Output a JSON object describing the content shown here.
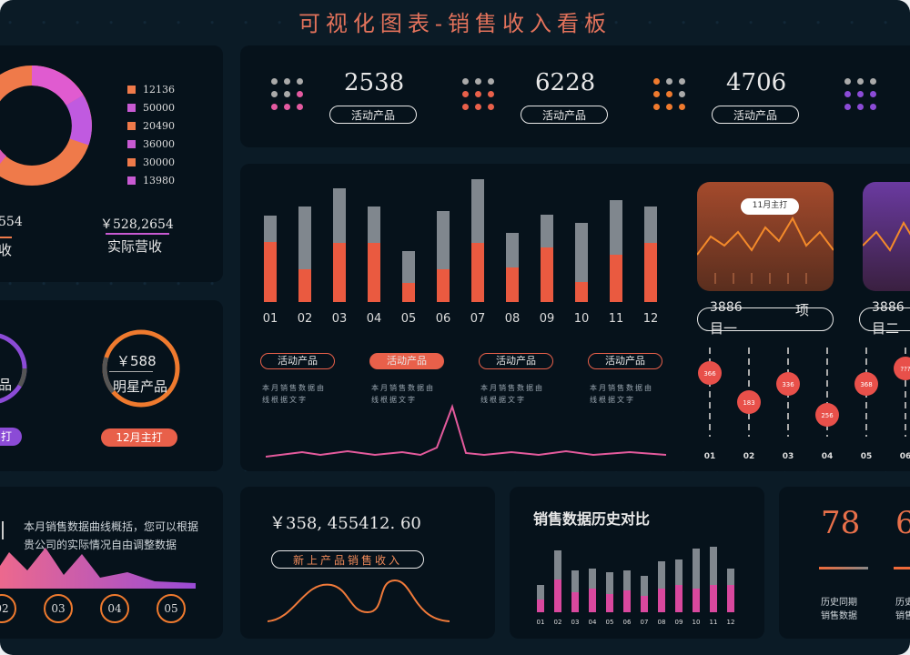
{
  "title": "可视化图表-销售收入看板",
  "donut": {
    "legend": [
      "12136",
      "50000",
      "20490",
      "36000",
      "30000",
      "13980"
    ],
    "colors": [
      "#ef7a4a",
      "#c85ad2",
      "#ef7a4a",
      "#c85ad2",
      "#ef7a4a",
      "#c85ad2"
    ],
    "left_value": "554",
    "left_label": "收",
    "right_value": "￥528,2654",
    "right_label": "实际营收"
  },
  "stats": [
    {
      "value": "2538",
      "label": "活动产品"
    },
    {
      "value": "6228",
      "label": "活动产品"
    },
    {
      "value": "4706",
      "label": "活动产品"
    }
  ],
  "rings": {
    "left_text": "品",
    "left_badge": "打",
    "right_value": "￥588",
    "right_label": "明星产品",
    "right_badge": "12月主打"
  },
  "main_chart": {
    "type": "bar",
    "categories": [
      "01",
      "02",
      "03",
      "04",
      "05",
      "06",
      "07",
      "08",
      "09",
      "10",
      "11",
      "12"
    ],
    "tabs": [
      "活动产品",
      "活动产品",
      "活动产品",
      "活动产品"
    ],
    "tab_note": "本月销售数据由线根据文字"
  },
  "mini_cards": {
    "bubble": "11月主打",
    "left_text_a": "3886",
    "left_text_b": "项",
    "left_text_c": "目一",
    "right_text_a": "3886",
    "right_text_b": "目二"
  },
  "dials": {
    "labels": [
      "01",
      "02",
      "03",
      "04",
      "05",
      "06"
    ],
    "values": [
      "366",
      "183",
      "336",
      "256",
      "368",
      "???"
    ]
  },
  "bottom_left": {
    "text": "本月销售数据曲线概括，您可以根据贵公司的实际情况自由调整数据",
    "nums": [
      "02",
      "03",
      "04",
      "05"
    ]
  },
  "bottom_mid": {
    "value": "￥358, 455412. 60",
    "label": "新上产品销售收入"
  },
  "history": {
    "title": "销售数据历史对比",
    "categories": [
      "01",
      "02",
      "03",
      "04",
      "05",
      "06",
      "07",
      "08",
      "09",
      "10",
      "11",
      "12"
    ]
  },
  "bottom_right": {
    "value_a": "78",
    "value_b": "6",
    "label_a1": "历史同期",
    "label_a2": "销售数据",
    "label_b1": "历史",
    "label_b2": "销售"
  }
}
